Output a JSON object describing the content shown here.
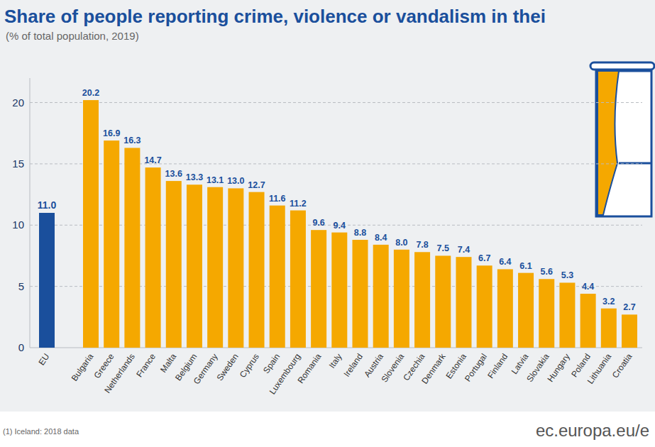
{
  "chart_data": {
    "type": "bar",
    "title": "Share of people reporting crime, violence or vandalism in thei",
    "subtitle": "(% of total population, 2019)",
    "annotations": [
      "(1) Iceland: 2018 data",
      "ec.europa.eu/e"
    ],
    "categories": [
      "EU",
      "Bulgaria",
      "Greece",
      "Netherlands",
      "France",
      "Malta",
      "Belgium",
      "Germany",
      "Sweden",
      "Cyprus",
      "Spain",
      "Luxembourg",
      "Romania",
      "Italy",
      "Ireland",
      "Austria",
      "Slovenia",
      "Czechia",
      "Denmark",
      "Estonia",
      "Portugal",
      "Finland",
      "Latvia",
      "Slovakia",
      "Hungary",
      "Poland",
      "Lithuania",
      "Croatia"
    ],
    "values": [
      11.0,
      20.2,
      16.9,
      16.3,
      14.7,
      13.6,
      13.3,
      13.1,
      13.0,
      12.7,
      11.6,
      11.2,
      9.6,
      9.4,
      8.8,
      8.4,
      8.0,
      7.8,
      7.5,
      7.4,
      6.7,
      6.4,
      6.1,
      5.6,
      5.3,
      4.4,
      3.2,
      2.7
    ],
    "value_labels": [
      "11.0",
      "20.2",
      "16.9",
      "16.3",
      "14.7",
      "13.6",
      "13.3",
      "13.1",
      "13.0",
      "12.7",
      "11.6",
      "11.2",
      "9.6",
      "9.4",
      "8.8",
      "8.4",
      "8.0",
      "7.8",
      "7.5",
      "7.4",
      "6.7",
      "6.4",
      "6.1",
      "5.6",
      "5.3",
      "4.4",
      "3.2",
      "2.7"
    ],
    "colors": [
      "#1a4f9c",
      "#f5a800",
      "#f5a800",
      "#f5a800",
      "#f5a800",
      "#f5a800",
      "#f5a800",
      "#f5a800",
      "#f5a800",
      "#f5a800",
      "#f5a800",
      "#f5a800",
      "#f5a800",
      "#f5a800",
      "#f5a800",
      "#f5a800",
      "#f5a800",
      "#f5a800",
      "#f5a800",
      "#f5a800",
      "#f5a800",
      "#f5a800",
      "#f5a800",
      "#f5a800",
      "#f5a800",
      "#f5a800",
      "#f5a800",
      "#f5a800"
    ],
    "ylim": [
      0,
      22
    ],
    "yticks": [
      0,
      5,
      10,
      15,
      20
    ],
    "grid": true,
    "data_labels": true
  }
}
